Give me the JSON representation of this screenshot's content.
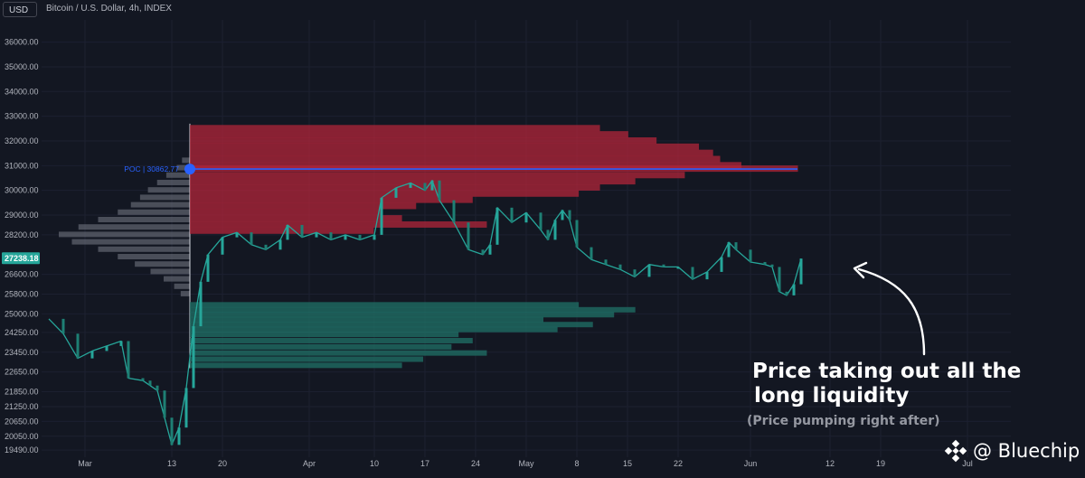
{
  "header": {
    "currency": "USD",
    "title": "Bitcoin / U.S. Dollar, 4h, INDEX"
  },
  "colors": {
    "background": "#131722",
    "candle": "#26a69a",
    "poc": "#2962ff",
    "sell_volume": "#b2263a",
    "buy_volume": "#1f6b63",
    "profile": "#787b86",
    "price_badge": "#26a69a"
  },
  "chart_data": {
    "type": "candlestick_with_volume_profile",
    "symbol": "Bitcoin / U.S. Dollar",
    "interval": "4h",
    "y_ticks": [
      "36000.00",
      "35000.00",
      "34000.00",
      "33000.00",
      "32000.00",
      "31000.00",
      "30000.00",
      "29000.00",
      "28200.00",
      "26600.00",
      "25800.00",
      "25000.00",
      "24250.00",
      "23450.00",
      "22650.00",
      "21850.00",
      "21250.00",
      "20650.00",
      "20050.00",
      "19490.00"
    ],
    "y_tick_values": [
      36000,
      35000,
      34000,
      33000,
      32000,
      31000,
      30000,
      29000,
      28200,
      26600,
      25800,
      25000,
      24250,
      23450,
      22650,
      21850,
      21250,
      20650,
      20050,
      19490
    ],
    "x_ticks": [
      {
        "label": "Mar",
        "day": 0
      },
      {
        "label": "13",
        "day": 12
      },
      {
        "label": "20",
        "day": 19
      },
      {
        "label": "Apr",
        "day": 31
      },
      {
        "label": "10",
        "day": 40
      },
      {
        "label": "17",
        "day": 47
      },
      {
        "label": "24",
        "day": 54
      },
      {
        "label": "May",
        "day": 61
      },
      {
        "label": "8",
        "day": 68
      },
      {
        "label": "15",
        "day": 75
      },
      {
        "label": "22",
        "day": 82
      },
      {
        "label": "Jun",
        "day": 92
      },
      {
        "label": "12",
        "day": 103
      },
      {
        "label": "19",
        "day": 110
      },
      {
        "label": "Jul",
        "day": 122
      }
    ],
    "x_range_days": [
      -6,
      128
    ],
    "y_range": [
      19200,
      36900
    ],
    "current_price": "27238.18",
    "current_price_value": 27238.18,
    "poc_label": "POC | 30862.77",
    "poc_value": 30862.77,
    "profile_start_day": 14.5,
    "profile_end_day": 98.5,
    "price_path": [
      [
        -5,
        24800
      ],
      [
        -3,
        24200
      ],
      [
        -1,
        23200
      ],
      [
        1,
        23500
      ],
      [
        3,
        23700
      ],
      [
        5,
        23900
      ],
      [
        6,
        22400
      ],
      [
        8,
        22300
      ],
      [
        9,
        22100
      ],
      [
        10,
        21900
      ],
      [
        11,
        20800
      ],
      [
        12,
        19700
      ],
      [
        13,
        20400
      ],
      [
        14,
        22000
      ],
      [
        15,
        24500
      ],
      [
        16,
        26300
      ],
      [
        17,
        27400
      ],
      [
        19,
        28100
      ],
      [
        21,
        28300
      ],
      [
        23,
        27800
      ],
      [
        25,
        27600
      ],
      [
        27,
        28000
      ],
      [
        28,
        28600
      ],
      [
        30,
        28100
      ],
      [
        32,
        28300
      ],
      [
        34,
        28000
      ],
      [
        36,
        28200
      ],
      [
        38,
        28000
      ],
      [
        40,
        28200
      ],
      [
        41,
        29700
      ],
      [
        43,
        30100
      ],
      [
        45,
        30300
      ],
      [
        47,
        30000
      ],
      [
        48,
        30400
      ],
      [
        49,
        29600
      ],
      [
        51,
        28700
      ],
      [
        53,
        27600
      ],
      [
        55,
        27400
      ],
      [
        56,
        27800
      ],
      [
        57,
        29300
      ],
      [
        59,
        28700
      ],
      [
        61,
        29100
      ],
      [
        63,
        28400
      ],
      [
        64,
        28000
      ],
      [
        65,
        28800
      ],
      [
        66,
        29200
      ],
      [
        67,
        28800
      ],
      [
        68,
        27700
      ],
      [
        70,
        27200
      ],
      [
        72,
        27000
      ],
      [
        74,
        26800
      ],
      [
        76,
        26500
      ],
      [
        78,
        27000
      ],
      [
        80,
        26900
      ],
      [
        82,
        26900
      ],
      [
        84,
        26400
      ],
      [
        86,
        26700
      ],
      [
        88,
        27300
      ],
      [
        89,
        27900
      ],
      [
        90,
        27600
      ],
      [
        92,
        27100
      ],
      [
        94,
        27000
      ],
      [
        95,
        26900
      ],
      [
        96,
        25900
      ],
      [
        97,
        25750
      ],
      [
        98,
        26200
      ],
      [
        99,
        27238
      ]
    ],
    "sell_levels": [
      {
        "price": 32500,
        "length": 0.58
      },
      {
        "price": 32250,
        "length": 0.62
      },
      {
        "price": 32000,
        "length": 0.66
      },
      {
        "price": 31750,
        "length": 0.72
      },
      {
        "price": 31500,
        "length": 0.74
      },
      {
        "price": 31250,
        "length": 0.75
      },
      {
        "price": 31000,
        "length": 0.78
      },
      {
        "price": 30862,
        "length": 0.86
      },
      {
        "price": 30600,
        "length": 0.7
      },
      {
        "price": 30350,
        "length": 0.63
      },
      {
        "price": 30100,
        "length": 0.58
      },
      {
        "price": 29850,
        "length": 0.55
      },
      {
        "price": 29600,
        "length": 0.4
      },
      {
        "price": 29350,
        "length": 0.32
      },
      {
        "price": 29100,
        "length": 0.27
      },
      {
        "price": 28850,
        "length": 0.3
      },
      {
        "price": 28600,
        "length": 0.42
      },
      {
        "price": 28350,
        "length": 0.26
      }
    ],
    "buy_levels": [
      {
        "price": 25350,
        "length": 0.55
      },
      {
        "price": 25150,
        "length": 0.63
      },
      {
        "price": 24950,
        "length": 0.6
      },
      {
        "price": 24750,
        "length": 0.5
      },
      {
        "price": 24550,
        "length": 0.57
      },
      {
        "price": 24350,
        "length": 0.52
      },
      {
        "price": 24150,
        "length": 0.38
      },
      {
        "price": 23900,
        "length": 0.4
      },
      {
        "price": 23650,
        "length": 0.37
      },
      {
        "price": 23400,
        "length": 0.42
      },
      {
        "price": 23150,
        "length": 0.33
      },
      {
        "price": 22900,
        "length": 0.3
      }
    ],
    "left_profile": [
      {
        "price": 31200,
        "length": 0.06
      },
      {
        "price": 30900,
        "length": 0.1
      },
      {
        "price": 30600,
        "length": 0.18
      },
      {
        "price": 30300,
        "length": 0.25
      },
      {
        "price": 30000,
        "length": 0.32
      },
      {
        "price": 29700,
        "length": 0.38
      },
      {
        "price": 29400,
        "length": 0.45
      },
      {
        "price": 29100,
        "length": 0.55
      },
      {
        "price": 28800,
        "length": 0.7
      },
      {
        "price": 28500,
        "length": 0.85
      },
      {
        "price": 28200,
        "length": 1.0
      },
      {
        "price": 27900,
        "length": 0.9
      },
      {
        "price": 27600,
        "length": 0.7
      },
      {
        "price": 27300,
        "length": 0.55
      },
      {
        "price": 27000,
        "length": 0.42
      },
      {
        "price": 26700,
        "length": 0.3
      },
      {
        "price": 26400,
        "length": 0.2
      },
      {
        "price": 26100,
        "length": 0.12
      },
      {
        "price": 25800,
        "length": 0.07
      }
    ]
  },
  "annotations": {
    "main_line1": "Price taking out all the",
    "main_line2": "long liquidity",
    "sub": "(Price pumping right after)"
  },
  "watermark": {
    "text": "@ Bluechip"
  }
}
